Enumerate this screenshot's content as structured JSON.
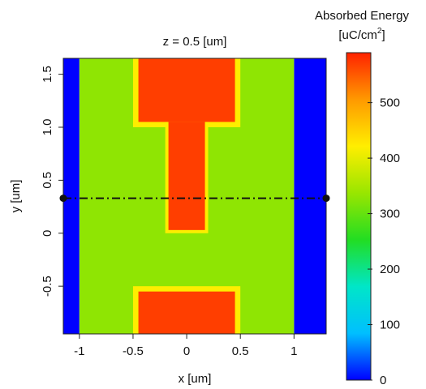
{
  "chart_data": {
    "type": "heatmap",
    "title": "z = 0.5 [um]",
    "xlabel": "x [um]",
    "ylabel": "y [um]",
    "xlim": [
      -1.15,
      1.3
    ],
    "ylim": [
      -0.95,
      1.65
    ],
    "x_ticks": [
      {
        "value": -1,
        "label": "-1"
      },
      {
        "value": -0.5,
        "label": "-0.5"
      },
      {
        "value": 0,
        "label": "0"
      },
      {
        "value": 0.5,
        "label": "0.5"
      },
      {
        "value": 1,
        "label": "1"
      }
    ],
    "y_ticks": [
      {
        "value": -0.5,
        "label": "-0.5"
      },
      {
        "value": 0,
        "label": "0"
      },
      {
        "value": 0.5,
        "label": "0.5"
      },
      {
        "value": 1.0,
        "label": "1.0"
      },
      {
        "value": 1.5,
        "label": "1.5"
      }
    ],
    "regions": [
      {
        "name": "background-left",
        "x": [
          -1.15,
          -1.0
        ],
        "y": [
          -0.95,
          1.65
        ],
        "value": 0
      },
      {
        "name": "background-right",
        "x": [
          1.0,
          1.3
        ],
        "y": [
          -0.95,
          1.65
        ],
        "value": 0
      },
      {
        "name": "inner-field",
        "x": [
          -1.0,
          1.0
        ],
        "y": [
          -0.95,
          1.65
        ],
        "value": 330
      },
      {
        "name": "top-pad-halo",
        "x": [
          -0.5,
          0.5
        ],
        "y": [
          1.0,
          1.65
        ],
        "value": 420
      },
      {
        "name": "top-pad",
        "x": [
          -0.45,
          0.45
        ],
        "y": [
          1.05,
          1.65
        ],
        "value": 570
      },
      {
        "name": "stem-halo",
        "x": [
          -0.2,
          0.2
        ],
        "y": [
          0.0,
          1.05
        ],
        "value": 420
      },
      {
        "name": "stem",
        "x": [
          -0.17,
          0.17
        ],
        "y": [
          0.03,
          1.05
        ],
        "value": 570
      },
      {
        "name": "bottom-pad-halo",
        "x": [
          -0.5,
          0.5
        ],
        "y": [
          -0.95,
          -0.5
        ],
        "value": 420
      },
      {
        "name": "bottom-pad",
        "x": [
          -0.45,
          0.45
        ],
        "y": [
          -0.95,
          -0.55
        ],
        "value": 570
      }
    ],
    "cutline": {
      "y": 0.33,
      "x": [
        -1.15,
        1.3
      ],
      "style": "dash-dot",
      "endpoints": "dots"
    },
    "colorbar": {
      "title_line1": "Absorbed Energy",
      "unit_prefix": "[uC/cm",
      "unit_exp": "2",
      "unit_suffix": "]",
      "range": [
        0,
        590
      ],
      "ticks": [
        {
          "value": 0,
          "label": "0"
        },
        {
          "value": 100,
          "label": "100"
        },
        {
          "value": 200,
          "label": "200"
        },
        {
          "value": 300,
          "label": "300"
        },
        {
          "value": 400,
          "label": "400"
        },
        {
          "value": 500,
          "label": "500"
        }
      ],
      "colormap": [
        "#0000ff",
        "#00bfff",
        "#00e6c8",
        "#22dd22",
        "#99e600",
        "#ffee00",
        "#ff9900",
        "#ff2200"
      ]
    }
  }
}
